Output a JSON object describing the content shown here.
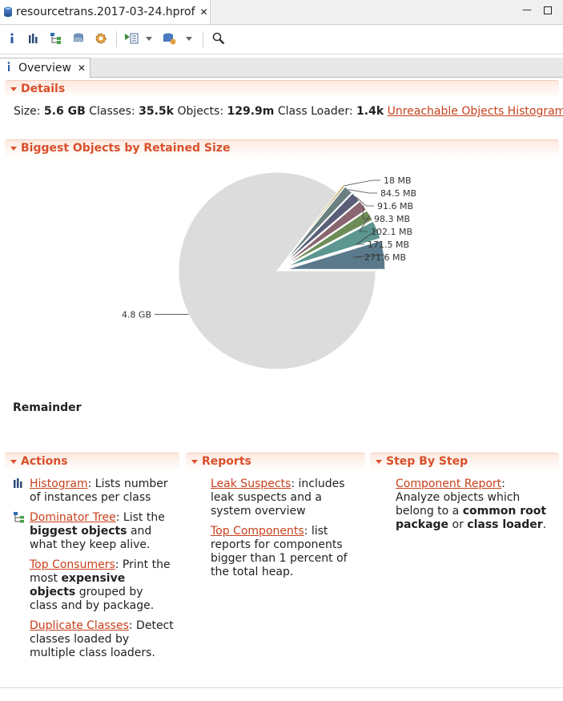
{
  "file_tab": {
    "name": "resourcetrans.2017-03-24.hprof"
  },
  "toolbar": {
    "icons": [
      "info-icon",
      "histogram-icon",
      "dominator-tree-icon",
      "oql-icon",
      "thread-overview-icon",
      "run-report-icon",
      "query-browser-icon",
      "search-icon"
    ]
  },
  "editor_tab": {
    "label": "Overview"
  },
  "details": {
    "title": "Details",
    "size_label": "Size:",
    "size_value": "5.6 GB",
    "classes_label": "Classes:",
    "classes_value": "35.5k",
    "objects_label": "Objects:",
    "objects_value": "129.9m",
    "loader_label": "Class Loader:",
    "loader_value": "1.4k",
    "link": "Unreachable Objects Histogram"
  },
  "biggest": {
    "title": "Biggest Objects by Retained Size",
    "remainder_label": "Remainder"
  },
  "chart_data": {
    "type": "pie",
    "unit": "MB",
    "slices": [
      {
        "label": "271.6 MB",
        "value": 271.6,
        "color": "#5a7a8c"
      },
      {
        "label": "171.5 MB",
        "value": 171.5,
        "color": "#5b9690"
      },
      {
        "label": "102.1 MB",
        "value": 102.1,
        "color": "#6e8c58"
      },
      {
        "label": "98.3 MB",
        "value": 98.3,
        "color": "#8a6670"
      },
      {
        "label": "91.6 MB",
        "value": 91.6,
        "color": "#5a5e78"
      },
      {
        "label": "84.5 MB",
        "value": 84.5,
        "color": "#6a7f80"
      },
      {
        "label": "18 MB",
        "value": 18,
        "color": "#b79a3c"
      },
      {
        "label": "4.8 GB",
        "value": 4915,
        "color": "#dcdcdc"
      }
    ]
  },
  "actions": {
    "title": "Actions",
    "items": [
      {
        "link": "Histogram",
        "text": ": Lists number of instances per class"
      },
      {
        "link": "Dominator Tree",
        "text1": ": List the ",
        "bold": "biggest objects",
        "text2": " and what they keep alive."
      },
      {
        "link": "Top Consumers",
        "text1": ": Print the most ",
        "bold": "expensive objects",
        "text2": " grouped by class and by package."
      },
      {
        "link": "Duplicate Classes",
        "text": ": Detect classes loaded by multiple class loaders."
      }
    ]
  },
  "reports": {
    "title": "Reports",
    "items": [
      {
        "link": "Leak Suspects",
        "text": ": includes leak suspects and a system overview"
      },
      {
        "link": "Top Components",
        "text": ": list reports for components bigger than 1 percent of the total heap."
      }
    ]
  },
  "step": {
    "title": "Step By Step",
    "item": {
      "link": "Component Report",
      "text1": ": Analyze objects which belong to a ",
      "bold1": "common root package",
      "text2": " or ",
      "bold2": "class loader",
      "text3": "."
    }
  }
}
